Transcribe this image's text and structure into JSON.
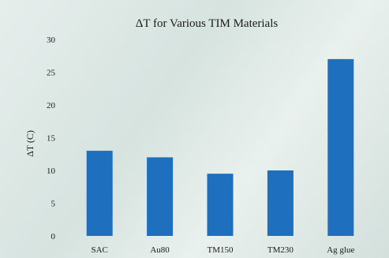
{
  "chart_data": {
    "type": "bar",
    "title": "ΔT for Various TIM Materials",
    "xlabel": "",
    "ylabel": "ΔT (C)",
    "categories": [
      "SAC",
      "Au80",
      "TM150",
      "TM230",
      "Ag glue"
    ],
    "values": [
      13,
      12,
      9.5,
      10,
      27
    ],
    "ylim": [
      0,
      30
    ],
    "yticks": [
      0,
      5,
      10,
      15,
      20,
      25,
      30
    ],
    "grid": false,
    "bar_color": "#1f6fbf"
  }
}
